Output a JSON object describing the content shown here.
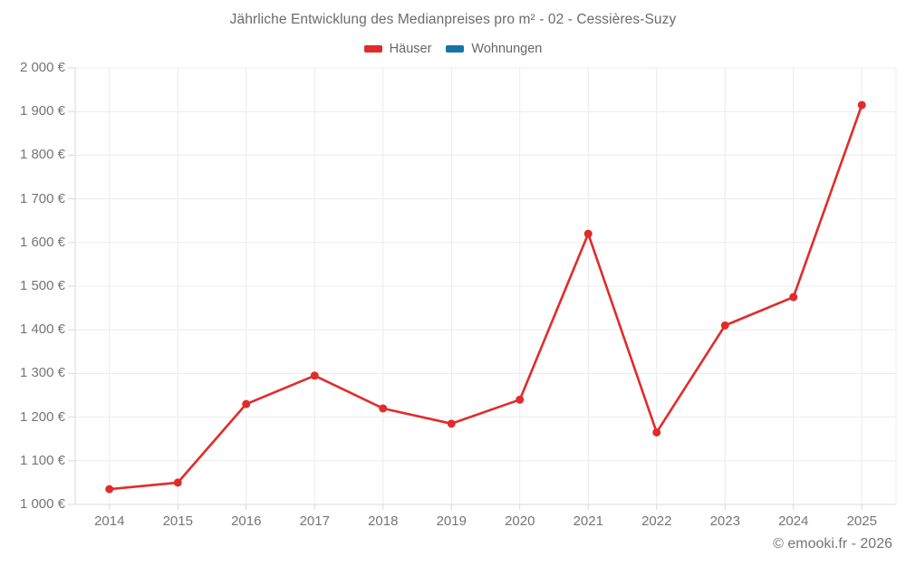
{
  "title": "Jährliche Entwicklung des Medianpreises pro m² - 02 - Cessières-Suzy",
  "legend": [
    {
      "id": "haeuser",
      "label": "Häuser",
      "color": "#e12b2b"
    },
    {
      "id": "wohnungen",
      "label": "Wohnungen",
      "color": "#1a73a8"
    }
  ],
  "footer": "© emooki.fr - 2026",
  "colors": {
    "grid": "#ececec",
    "axis": "#d9d9d9",
    "tick_text": "#757575",
    "title_text": "#6b6b6b"
  },
  "chart_data": {
    "type": "line",
    "title": "Jährliche Entwicklung des Medianpreises pro m² - 02 - Cessières-Suzy",
    "categories": [
      "2014",
      "2015",
      "2016",
      "2017",
      "2018",
      "2019",
      "2020",
      "2021",
      "2022",
      "2023",
      "2024",
      "2025"
    ],
    "series": [
      {
        "name": "Häuser",
        "color": "#e12b2b",
        "values": [
          1035,
          1050,
          1230,
          1295,
          1220,
          1185,
          1240,
          1620,
          1165,
          1410,
          1475,
          1915
        ]
      },
      {
        "name": "Wohnungen",
        "color": "#1a73a8",
        "values": []
      }
    ],
    "xlabel": "",
    "ylabel": "",
    "ylim": [
      1000,
      2000
    ],
    "ytick_step": 100,
    "ytick_labels": [
      "1 000 €",
      "1 100 €",
      "1 200 €",
      "1 300 €",
      "1 400 €",
      "1 500 €",
      "1 600 €",
      "1 700 €",
      "1 800 €",
      "1 900 €",
      "2 000 €"
    ],
    "grid": true,
    "legend_position": "top"
  }
}
